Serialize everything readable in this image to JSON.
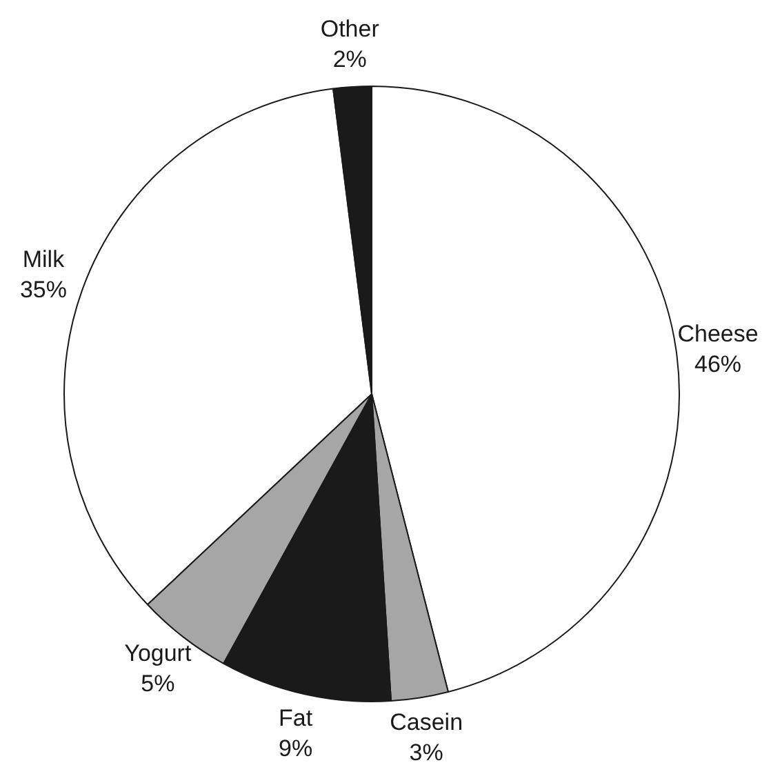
{
  "chart_data": {
    "type": "pie",
    "categories": [
      "Cheese",
      "Casein",
      "Fat",
      "Yogurt",
      "Milk",
      "Other"
    ],
    "values": [
      46,
      3,
      9,
      5,
      35,
      2
    ],
    "colors": [
      "#ffffff",
      "#a6a6a6",
      "#1a1a1a",
      "#a6a6a6",
      "#ffffff",
      "#1a1a1a"
    ],
    "value_labels": [
      "46%",
      "3%",
      "9%",
      "5%",
      "35%",
      "2%"
    ],
    "legend": false
  }
}
